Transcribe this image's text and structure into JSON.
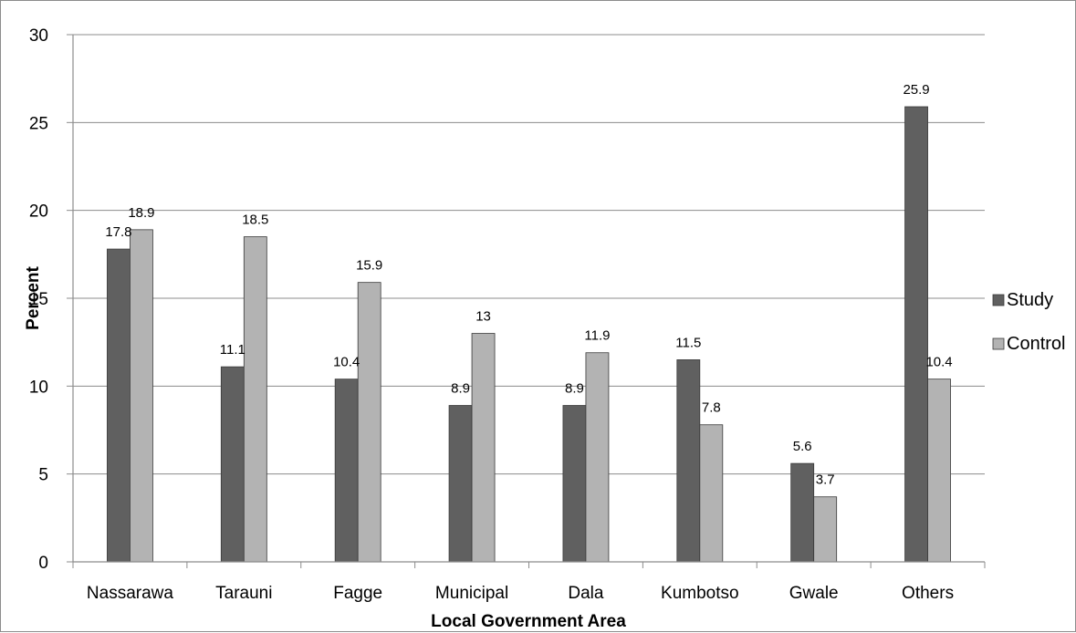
{
  "chart_data": {
    "type": "bar",
    "title": "",
    "xlabel": "Local Government Area",
    "ylabel": "Percent",
    "ylim": [
      0,
      30
    ],
    "yticks": [
      0,
      5,
      10,
      15,
      20,
      25,
      30
    ],
    "grid": true,
    "legend_position": "right",
    "categories": [
      "Nassarawa",
      "Tarauni",
      "Fagge",
      "Municipal",
      "Dala",
      "Kumbotso",
      "Gwale",
      "Others"
    ],
    "series": [
      {
        "name": "Study",
        "color": "#606060",
        "values": [
          17.8,
          11.1,
          10.4,
          8.9,
          8.9,
          11.5,
          5.6,
          25.9
        ],
        "labels": [
          "17.8",
          "11.1",
          "10.4",
          "8.9",
          "8.9",
          "11.5",
          "5.6",
          "25.9"
        ]
      },
      {
        "name": "Control",
        "color": "#b3b3b3",
        "values": [
          18.9,
          18.5,
          15.9,
          13,
          11.9,
          7.8,
          3.7,
          10.4
        ],
        "labels": [
          "18.9",
          "18.5",
          "15.9",
          "13",
          "11.9",
          "7.8",
          "3.7",
          "10.4"
        ]
      }
    ]
  }
}
